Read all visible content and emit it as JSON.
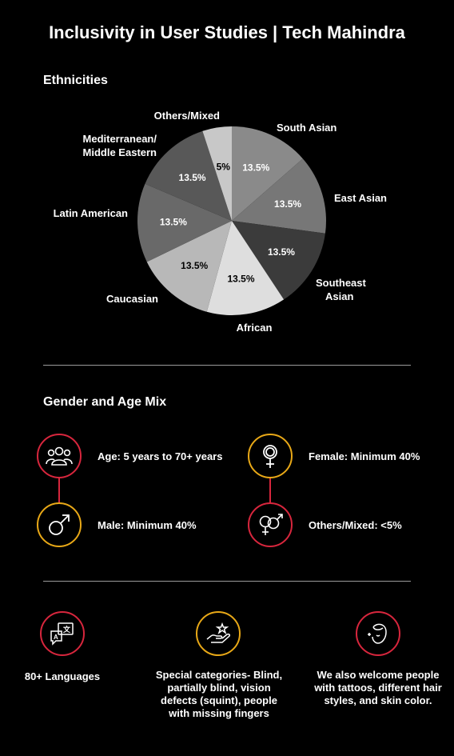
{
  "title": "Inclusivity in User Studies | Tech Mahindra",
  "ethnicities_title": "Ethnicities",
  "gender_title": "Gender and Age Mix",
  "chart_data": {
    "type": "pie",
    "title": "",
    "slices": [
      {
        "label": "South Asian",
        "value": 13.5,
        "value_label": "13.5%",
        "color": "#8a8a8a"
      },
      {
        "label": "East Asian",
        "value": 13.5,
        "value_label": "13.5%",
        "color": "#777777"
      },
      {
        "label": "Southeast Asian",
        "label_lines": [
          "Southeast",
          "Asian"
        ],
        "value": 13.5,
        "value_label": "13.5%",
        "color": "#3b3b3b"
      },
      {
        "label": "African",
        "value": 13.5,
        "value_label": "13.5%",
        "color": "#dedede"
      },
      {
        "label": "Caucasian",
        "value": 13.5,
        "value_label": "13.5%",
        "color": "#b8b8b8"
      },
      {
        "label": "Latin American",
        "value": 13.5,
        "value_label": "13.5%",
        "color": "#696969"
      },
      {
        "label": "Mediterranean/ Middle Eastern",
        "label_lines": [
          "Mediterranean/",
          "Middle Eastern"
        ],
        "value": 13.5,
        "value_label": "13.5%",
        "color": "#585858"
      },
      {
        "label": "Others/Mixed",
        "value": 5,
        "value_label": "5%",
        "color": "#c8c8c8"
      }
    ]
  },
  "gender_items": [
    {
      "label": "Age: 5 years to 70+ years",
      "icon": "people-icon",
      "border": "red"
    },
    {
      "label": "Female: Minimum 40%",
      "icon": "female-icon",
      "border": "gold"
    },
    {
      "label": "Male: Minimum 40%",
      "icon": "male-icon",
      "border": "gold"
    },
    {
      "label": "Others/Mixed: <5%",
      "icon": "gender-mixed-icon",
      "border": "red"
    }
  ],
  "features": [
    {
      "icon": "languages-icon",
      "text": "80+ Languages"
    },
    {
      "icon": "hand-stars-icon",
      "text": "Special categories- Blind, partially blind, vision defects (squint), people with missing fingers"
    },
    {
      "icon": "face-sparkle-icon",
      "text": "We also welcome people with tattoos, different hair styles, and skin color."
    }
  ]
}
